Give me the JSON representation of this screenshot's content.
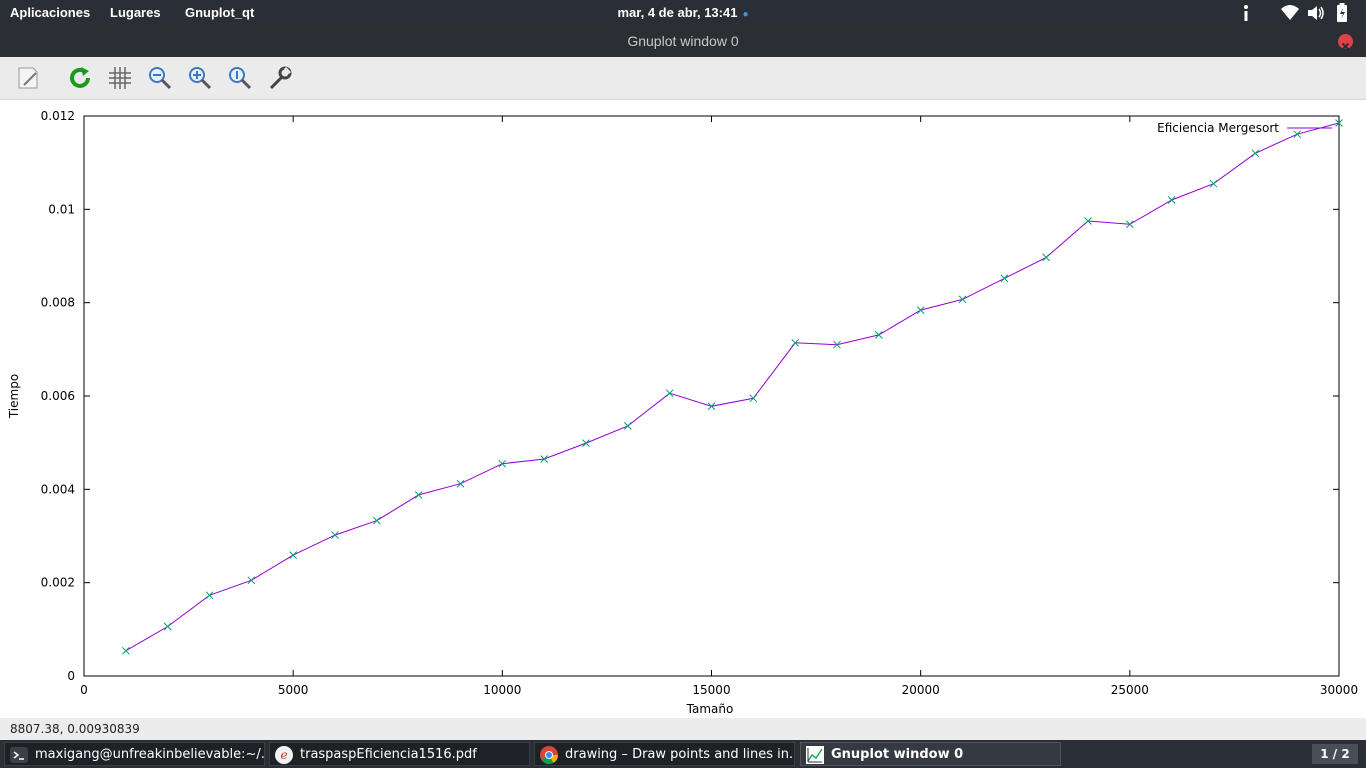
{
  "topbar": {
    "menu_applications": "Aplicaciones",
    "menu_places": "Lugares",
    "menu_app": "Gnuplot_qt",
    "clock": "mar,  4 de abr, 13:41",
    "clock_dot": "●"
  },
  "window": {
    "title": "Gnuplot window 0"
  },
  "toolbar": {
    "icons": [
      "export-icon",
      "replot-icon",
      "grid-icon",
      "zoom-out-icon",
      "zoom-in-icon",
      "zoom-reset-icon",
      "settings-icon"
    ]
  },
  "chart_data": {
    "type": "line",
    "xlabel": "Tamaño",
    "ylabel": "Tiempo",
    "xlim": [
      0,
      30000
    ],
    "ylim": [
      0,
      0.012
    ],
    "x_ticks": [
      "0",
      "5000",
      "10000",
      "15000",
      "20000",
      "25000",
      "30000"
    ],
    "y_ticks": [
      "0",
      "0.002",
      "0.004",
      "0.006",
      "0.008",
      "0.01",
      "0.012"
    ],
    "grid": false,
    "legend_position": "top-right",
    "series": [
      {
        "name": "Eficiencia Mergesort",
        "color": "#9400d3",
        "marker_color": "#009e73",
        "x": [
          1000,
          2000,
          3000,
          4000,
          5000,
          6000,
          7000,
          8000,
          9000,
          10000,
          11000,
          12000,
          13000,
          14000,
          15000,
          16000,
          17000,
          18000,
          19000,
          20000,
          21000,
          22000,
          23000,
          24000,
          25000,
          26000,
          27000,
          28000,
          29000,
          30000
        ],
        "y": [
          0.00054,
          0.00106,
          0.00173,
          0.00205,
          0.00259,
          0.00302,
          0.00333,
          0.00388,
          0.00412,
          0.00455,
          0.00465,
          0.00499,
          0.00536,
          0.00606,
          0.00578,
          0.00595,
          0.00714,
          0.0071,
          0.00731,
          0.00784,
          0.00807,
          0.00852,
          0.00897,
          0.00975,
          0.00968,
          0.0102,
          0.01055,
          0.0112,
          0.01161,
          0.01185
        ]
      }
    ]
  },
  "status": {
    "coords": "8807.38,  0.00930839"
  },
  "taskbar": {
    "items": [
      {
        "label": "maxigang@unfreakinbelievable:~/...",
        "icon": "terminal-icon"
      },
      {
        "label": "traspaspEficiencia1516.pdf",
        "icon": "evince-icon"
      },
      {
        "label": "drawing – Draw points and lines in...",
        "icon": "chrome-icon"
      },
      {
        "label": "Gnuplot window 0",
        "icon": "gnuplot-icon"
      }
    ],
    "workspace": "1 / 2"
  }
}
